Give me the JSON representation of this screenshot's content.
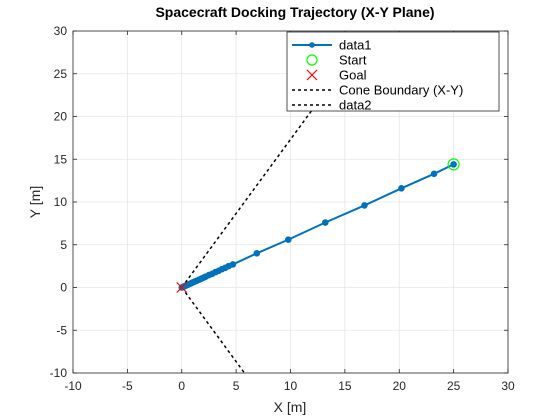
{
  "chart_data": {
    "type": "line",
    "title": "Spacecraft Docking Trajectory (X-Y Plane)",
    "xlabel": "X [m]",
    "ylabel": "Y [m]",
    "xlim": [
      -10,
      30
    ],
    "ylim": [
      -10,
      30
    ],
    "xticks": [
      -10,
      -5,
      0,
      5,
      10,
      15,
      20,
      25,
      30
    ],
    "yticks": [
      -10,
      -5,
      0,
      5,
      10,
      15,
      20,
      25,
      30
    ],
    "grid": true,
    "legend_position": "top-right",
    "colors": {
      "trajectory": "#0072BD",
      "start": "#00FF00",
      "goal": "#FF0000",
      "cone": "#000000",
      "grid": "#e6e6e6",
      "axes": "#262626"
    },
    "series": [
      {
        "name": "data1",
        "style": "line-with-dot-markers",
        "x": [
          25.0,
          23.2,
          20.2,
          16.8,
          13.2,
          9.8,
          6.9,
          4.7,
          4.3,
          4.0,
          3.7,
          3.4,
          3.1,
          2.8,
          2.5,
          2.2,
          2.0,
          1.8,
          1.6,
          1.4,
          1.2,
          1.0,
          0.85,
          0.7,
          0.55,
          0.42,
          0.3,
          0.2,
          0.12,
          0.05,
          0.0
        ],
        "y": [
          14.4,
          13.3,
          11.6,
          9.6,
          7.6,
          5.6,
          4.0,
          2.7,
          2.5,
          2.3,
          2.15,
          1.95,
          1.8,
          1.6,
          1.45,
          1.27,
          1.15,
          1.03,
          0.92,
          0.8,
          0.69,
          0.58,
          0.49,
          0.4,
          0.32,
          0.24,
          0.17,
          0.12,
          0.07,
          0.03,
          0.0
        ]
      },
      {
        "name": "Start",
        "style": "circle-marker",
        "x": [
          25.0
        ],
        "y": [
          14.4
        ]
      },
      {
        "name": "Goal",
        "style": "x-marker",
        "x": [
          0.0
        ],
        "y": [
          0.0
        ]
      },
      {
        "name": "Cone Boundary (X-Y)",
        "style": "dashed",
        "x": [
          0.0,
          17.32
        ],
        "y": [
          0.0,
          30.0
        ]
      },
      {
        "name": "data2",
        "style": "dashed",
        "x": [
          0.0,
          5.77
        ],
        "y": [
          0.0,
          -10.0
        ]
      }
    ]
  }
}
